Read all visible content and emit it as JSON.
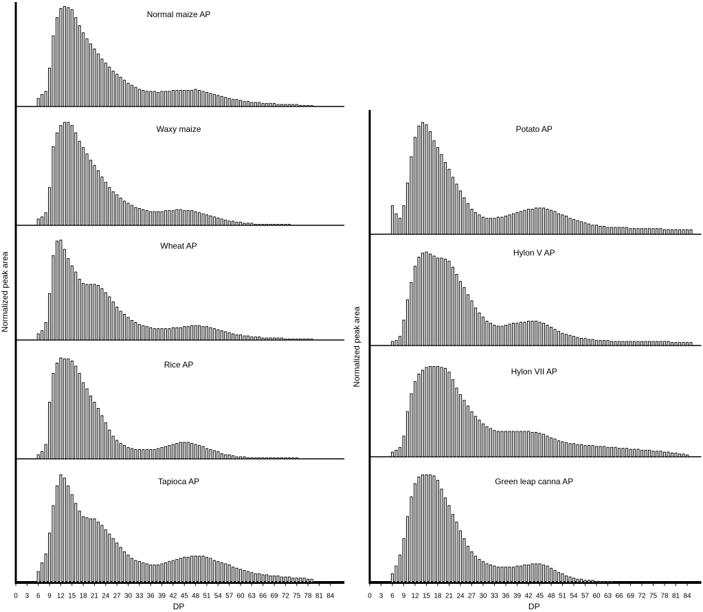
{
  "chart_data": [
    {
      "type": "bar",
      "title": "Normal maize AP",
      "ylabel": "Normalized peak area",
      "color": "#000000",
      "xlim": [
        0,
        87
      ],
      "ylim": [
        0,
        100
      ],
      "x": [
        6,
        7,
        8,
        9,
        10,
        11,
        12,
        13,
        14,
        15,
        16,
        17,
        18,
        19,
        20,
        21,
        22,
        23,
        24,
        25,
        26,
        27,
        28,
        29,
        30,
        31,
        32,
        33,
        34,
        35,
        36,
        37,
        38,
        39,
        40,
        41,
        42,
        43,
        44,
        45,
        46,
        47,
        48,
        49,
        50,
        51,
        52,
        53,
        54,
        55,
        56,
        57,
        58,
        59,
        60,
        61,
        62,
        63,
        64,
        65,
        66,
        67,
        68,
        69,
        70,
        71,
        72,
        73,
        74,
        75,
        76,
        77,
        78,
        79
      ],
      "values": [
        8,
        12,
        15,
        38,
        70,
        88,
        97,
        99,
        98,
        96,
        88,
        80,
        73,
        67,
        62,
        57,
        52,
        47,
        43,
        39,
        35,
        32,
        29,
        26,
        23,
        21,
        19,
        17,
        16,
        15,
        15,
        15,
        14,
        15,
        15,
        15,
        16,
        16,
        16,
        16,
        16,
        16,
        17,
        16,
        15,
        14,
        13,
        12,
        11,
        10,
        9,
        8,
        7,
        7,
        6,
        5,
        5,
        4,
        4,
        4,
        3,
        3,
        3,
        3,
        2,
        2,
        2,
        2,
        2,
        2,
        1,
        1,
        1,
        1
      ]
    },
    {
      "type": "bar",
      "title": "Waxy maize",
      "color": "#000000",
      "xlim": [
        0,
        87
      ],
      "ylim": [
        0,
        100
      ],
      "x": [
        6,
        7,
        8,
        9,
        10,
        11,
        12,
        13,
        14,
        15,
        16,
        17,
        18,
        19,
        20,
        21,
        22,
        23,
        24,
        25,
        26,
        27,
        28,
        29,
        30,
        31,
        32,
        33,
        34,
        35,
        36,
        37,
        38,
        39,
        40,
        41,
        42,
        43,
        44,
        45,
        46,
        47,
        48,
        49,
        50,
        51,
        52,
        53,
        54,
        55,
        56,
        57,
        58,
        59,
        60,
        61,
        62,
        63,
        64,
        65,
        66,
        67,
        68,
        69,
        70,
        71,
        72,
        73
      ],
      "values": [
        6,
        8,
        12,
        36,
        75,
        88,
        95,
        98,
        98,
        95,
        88,
        80,
        74,
        68,
        62,
        57,
        52,
        46,
        41,
        36,
        32,
        29,
        26,
        23,
        21,
        19,
        17,
        16,
        15,
        14,
        13,
        13,
        13,
        13,
        14,
        14,
        14,
        15,
        15,
        14,
        14,
        14,
        13,
        12,
        11,
        10,
        9,
        8,
        7,
        6,
        5,
        4,
        4,
        3,
        3,
        2,
        2,
        2,
        1,
        1,
        1,
        1,
        1,
        1,
        1,
        1,
        1,
        1
      ]
    },
    {
      "type": "bar",
      "title": "Wheat AP",
      "color": "#000000",
      "xlim": [
        0,
        87
      ],
      "ylim": [
        0,
        100
      ],
      "x": [
        6,
        7,
        8,
        9,
        10,
        11,
        12,
        13,
        14,
        15,
        16,
        17,
        18,
        19,
        20,
        21,
        22,
        23,
        24,
        25,
        26,
        27,
        28,
        29,
        30,
        31,
        32,
        33,
        34,
        35,
        36,
        37,
        38,
        39,
        40,
        41,
        42,
        43,
        44,
        45,
        46,
        47,
        48,
        49,
        50,
        51,
        52,
        53,
        54,
        55,
        56,
        57,
        58,
        59,
        60,
        61,
        62,
        63,
        64,
        65,
        66,
        67,
        68,
        69,
        70,
        71,
        72,
        73,
        74,
        75,
        76,
        77,
        78,
        79
      ],
      "values": [
        6,
        9,
        17,
        45,
        82,
        96,
        97,
        88,
        79,
        72,
        66,
        59,
        55,
        54,
        54,
        54,
        53,
        50,
        46,
        42,
        37,
        32,
        28,
        25,
        22,
        19,
        17,
        15,
        14,
        13,
        12,
        11,
        11,
        11,
        11,
        11,
        12,
        12,
        12,
        13,
        13,
        14,
        14,
        14,
        13,
        13,
        12,
        11,
        10,
        9,
        8,
        7,
        6,
        5,
        5,
        4,
        4,
        3,
        3,
        3,
        2,
        2,
        2,
        2,
        2,
        2,
        1,
        1,
        1,
        1,
        1,
        1,
        1,
        1
      ]
    },
    {
      "type": "bar",
      "title": "Rice AP",
      "color": "#000000",
      "xlim": [
        0,
        87
      ],
      "ylim": [
        0,
        100
      ],
      "x": [
        6,
        7,
        8,
        9,
        10,
        11,
        12,
        13,
        14,
        15,
        16,
        17,
        18,
        19,
        20,
        21,
        22,
        23,
        24,
        25,
        26,
        27,
        28,
        29,
        30,
        31,
        32,
        33,
        34,
        35,
        36,
        37,
        38,
        39,
        40,
        41,
        42,
        43,
        44,
        45,
        46,
        47,
        48,
        49,
        50,
        51,
        52,
        53,
        54,
        55,
        56,
        57,
        58,
        59,
        60,
        61,
        62,
        63,
        64,
        65,
        66,
        67,
        68,
        69,
        70,
        71,
        72,
        73,
        74,
        75
      ],
      "values": [
        4,
        7,
        14,
        55,
        83,
        93,
        98,
        97,
        97,
        95,
        90,
        83,
        74,
        68,
        61,
        55,
        49,
        42,
        35,
        28,
        22,
        18,
        15,
        13,
        11,
        10,
        9,
        9,
        9,
        9,
        9,
        9,
        10,
        11,
        12,
        13,
        14,
        15,
        16,
        16,
        16,
        15,
        14,
        13,
        12,
        10,
        9,
        8,
        7,
        5,
        4,
        4,
        3,
        2,
        2,
        2,
        1,
        1,
        1,
        1,
        1,
        1,
        1,
        1,
        1,
        1,
        1,
        1,
        1,
        1
      ]
    },
    {
      "type": "bar",
      "title": "Tapioca AP",
      "xlabel": "DP",
      "color": "#000000",
      "xlim": [
        0,
        87
      ],
      "ylim": [
        0,
        100
      ],
      "xticks": [
        0,
        3,
        6,
        9,
        12,
        15,
        18,
        21,
        24,
        27,
        30,
        33,
        36,
        39,
        42,
        45,
        48,
        51,
        54,
        57,
        60,
        63,
        66,
        69,
        72,
        75,
        78,
        81,
        84
      ],
      "x": [
        6,
        7,
        8,
        9,
        10,
        11,
        12,
        13,
        14,
        15,
        16,
        17,
        18,
        19,
        20,
        21,
        22,
        23,
        24,
        25,
        26,
        27,
        28,
        29,
        30,
        31,
        32,
        33,
        34,
        35,
        36,
        37,
        38,
        39,
        40,
        41,
        42,
        43,
        44,
        45,
        46,
        47,
        48,
        49,
        50,
        51,
        52,
        53,
        54,
        55,
        56,
        57,
        58,
        59,
        60,
        61,
        62,
        63,
        64,
        65,
        66,
        67,
        68,
        69,
        70,
        71,
        72,
        73,
        74,
        75,
        76,
        77,
        78,
        79
      ],
      "values": [
        10,
        18,
        26,
        45,
        70,
        88,
        98,
        95,
        88,
        80,
        72,
        65,
        60,
        59,
        58,
        58,
        55,
        52,
        48,
        44,
        40,
        36,
        32,
        28,
        25,
        22,
        20,
        19,
        18,
        17,
        16,
        16,
        16,
        17,
        18,
        19,
        20,
        21,
        22,
        23,
        23,
        24,
        24,
        24,
        24,
        23,
        22,
        20,
        19,
        18,
        17,
        16,
        14,
        13,
        12,
        11,
        10,
        9,
        8,
        8,
        7,
        7,
        6,
        6,
        6,
        5,
        5,
        5,
        4,
        4,
        4,
        4,
        3,
        3
      ]
    },
    {
      "type": "bar",
      "title": "Potato AP",
      "ylabel": "Normalized peak area",
      "color": "#000000",
      "xlim": [
        0,
        87
      ],
      "ylim": [
        0,
        100
      ],
      "x": [
        6,
        7,
        8,
        9,
        10,
        11,
        12,
        13,
        14,
        15,
        16,
        17,
        18,
        19,
        20,
        21,
        22,
        23,
        24,
        25,
        26,
        27,
        28,
        29,
        30,
        31,
        32,
        33,
        34,
        35,
        36,
        37,
        38,
        39,
        40,
        41,
        42,
        43,
        44,
        45,
        46,
        47,
        48,
        49,
        50,
        51,
        52,
        53,
        54,
        55,
        56,
        57,
        58,
        59,
        60,
        61,
        62,
        63,
        64,
        65,
        66,
        67,
        68,
        69,
        70,
        71,
        72,
        73,
        74,
        75,
        76,
        77,
        78,
        79,
        80,
        81,
        82,
        83,
        84,
        85
      ],
      "values": [
        25,
        18,
        14,
        25,
        45,
        68,
        85,
        95,
        98,
        96,
        90,
        82,
        76,
        70,
        63,
        57,
        50,
        44,
        38,
        32,
        27,
        22,
        19,
        17,
        15,
        14,
        14,
        14,
        15,
        15,
        16,
        17,
        18,
        19,
        20,
        21,
        22,
        22,
        23,
        23,
        23,
        22,
        21,
        20,
        18,
        17,
        16,
        14,
        13,
        12,
        11,
        10,
        9,
        8,
        8,
        7,
        7,
        6,
        6,
        6,
        6,
        6,
        6,
        5,
        5,
        5,
        5,
        5,
        5,
        5,
        5,
        5,
        4,
        4,
        4,
        4,
        4,
        4,
        4,
        4
      ]
    },
    {
      "type": "bar",
      "title": "Hylon V AP",
      "color": "#000000",
      "xlim": [
        0,
        87
      ],
      "ylim": [
        0,
        100
      ],
      "x": [
        6,
        7,
        8,
        9,
        10,
        11,
        12,
        13,
        14,
        15,
        16,
        17,
        18,
        19,
        20,
        21,
        22,
        23,
        24,
        25,
        26,
        27,
        28,
        29,
        30,
        31,
        32,
        33,
        34,
        35,
        36,
        37,
        38,
        39,
        40,
        41,
        42,
        43,
        44,
        45,
        46,
        47,
        48,
        49,
        50,
        51,
        52,
        53,
        54,
        55,
        56,
        57,
        58,
        59,
        60,
        61,
        62,
        63,
        64,
        65,
        66,
        67,
        68,
        69,
        70,
        71,
        72,
        73,
        74,
        75,
        76,
        77,
        78,
        79,
        80,
        81,
        82,
        83,
        84,
        85
      ],
      "values": [
        4,
        5,
        9,
        25,
        45,
        62,
        78,
        87,
        91,
        92,
        90,
        88,
        86,
        86,
        85,
        83,
        77,
        70,
        63,
        57,
        50,
        44,
        37,
        32,
        28,
        24,
        22,
        20,
        19,
        19,
        20,
        21,
        22,
        22,
        23,
        23,
        24,
        24,
        24,
        23,
        22,
        20,
        18,
        16,
        14,
        12,
        11,
        10,
        9,
        8,
        7,
        7,
        6,
        6,
        5,
        5,
        5,
        5,
        4,
        4,
        4,
        4,
        4,
        4,
        4,
        4,
        4,
        4,
        4,
        4,
        4,
        4,
        4,
        4,
        3,
        3,
        3,
        3,
        3,
        3
      ]
    },
    {
      "type": "bar",
      "title": "Hylon VII AP",
      "color": "#000000",
      "xlim": [
        0,
        87
      ],
      "ylim": [
        0,
        100
      ],
      "x": [
        6,
        7,
        8,
        9,
        10,
        11,
        12,
        13,
        14,
        15,
        16,
        17,
        18,
        19,
        20,
        21,
        22,
        23,
        24,
        25,
        26,
        27,
        28,
        29,
        30,
        31,
        32,
        33,
        34,
        35,
        36,
        37,
        38,
        39,
        40,
        41,
        42,
        43,
        44,
        45,
        46,
        47,
        48,
        49,
        50,
        51,
        52,
        53,
        54,
        55,
        56,
        57,
        58,
        59,
        60,
        61,
        62,
        63,
        64,
        65,
        66,
        67,
        68,
        69,
        70,
        71,
        72,
        73,
        74,
        75,
        76,
        77,
        78,
        79,
        80,
        81,
        82,
        83,
        84
      ],
      "values": [
        5,
        7,
        10,
        22,
        48,
        67,
        80,
        88,
        92,
        95,
        96,
        96,
        96,
        95,
        94,
        90,
        82,
        73,
        66,
        60,
        54,
        48,
        43,
        39,
        35,
        32,
        30,
        28,
        27,
        27,
        27,
        27,
        27,
        27,
        27,
        27,
        27,
        26,
        26,
        25,
        24,
        22,
        20,
        19,
        17,
        16,
        15,
        14,
        14,
        13,
        13,
        12,
        12,
        12,
        11,
        11,
        11,
        10,
        10,
        10,
        9,
        9,
        9,
        8,
        8,
        8,
        7,
        7,
        7,
        6,
        6,
        6,
        5,
        5,
        4,
        4,
        3,
        3,
        2
      ]
    },
    {
      "type": "bar",
      "title": "Green leap canna AP",
      "xlabel": "DP",
      "color": "#000000",
      "xlim": [
        0,
        87
      ],
      "ylim": [
        0,
        100
      ],
      "xticks": [
        0,
        3,
        6,
        9,
        12,
        15,
        18,
        21,
        24,
        27,
        30,
        33,
        36,
        39,
        42,
        45,
        48,
        51,
        54,
        57,
        60,
        63,
        66,
        69,
        72,
        75,
        78,
        81,
        84
      ],
      "x": [
        6,
        7,
        8,
        9,
        10,
        11,
        12,
        13,
        14,
        15,
        16,
        17,
        18,
        19,
        20,
        21,
        22,
        23,
        24,
        25,
        26,
        27,
        28,
        29,
        30,
        31,
        32,
        33,
        34,
        35,
        36,
        37,
        38,
        39,
        40,
        41,
        42,
        43,
        44,
        45,
        46,
        47,
        48,
        49,
        50,
        51,
        52,
        53,
        54,
        55,
        56,
        57,
        58,
        59,
        60,
        61,
        62,
        63,
        64
      ],
      "values": [
        8,
        15,
        25,
        40,
        60,
        78,
        90,
        96,
        98,
        98,
        98,
        97,
        93,
        85,
        77,
        70,
        62,
        55,
        47,
        40,
        33,
        28,
        24,
        21,
        19,
        17,
        16,
        15,
        14,
        14,
        14,
        14,
        14,
        15,
        15,
        16,
        16,
        17,
        17,
        17,
        16,
        15,
        13,
        11,
        9,
        8,
        6,
        5,
        4,
        3,
        3,
        2,
        2,
        2,
        1,
        1,
        1,
        1,
        1
      ]
    }
  ]
}
